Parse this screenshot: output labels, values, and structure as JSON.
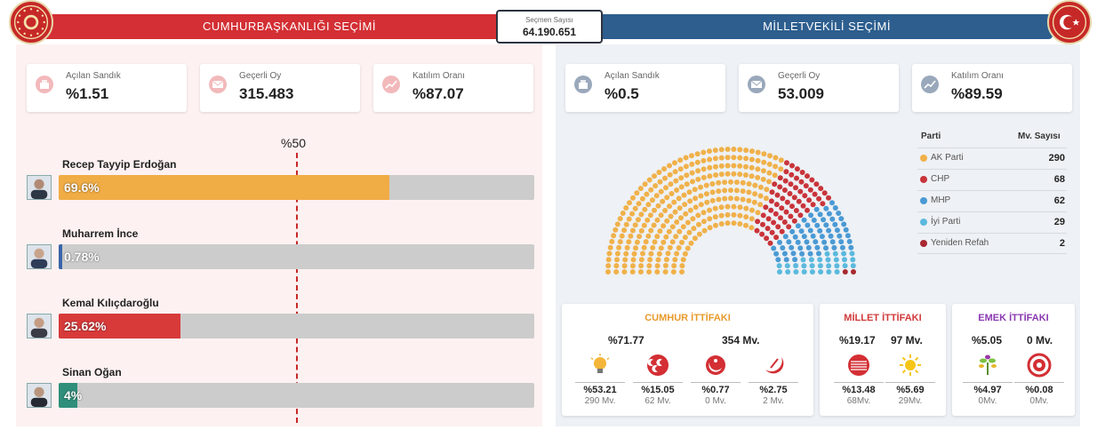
{
  "header": {
    "left_title": "CUMHURBAŞKANLIĞI SEÇİMİ",
    "right_title": "MİLLETVEKİLİ SEÇİMİ",
    "voters_label": "Seçmen Sayısı",
    "voters_value": "64.190.651"
  },
  "presidential": {
    "stats": [
      {
        "label": "Açılan Sandık",
        "value": "%1.51",
        "icon": "ballot-box-icon"
      },
      {
        "label": "Geçerli Oy",
        "value": "315.483",
        "icon": "envelope-icon"
      },
      {
        "label": "Katılım Oranı",
        "value": "%87.07",
        "icon": "trend-chart-icon"
      }
    ],
    "threshold_label": "%50",
    "candidates": [
      {
        "name": "Recep Tayyip Erdoğan",
        "pct_label": "69.6%",
        "pct": 69.6,
        "color": "#f0ac45"
      },
      {
        "name": "Muharrem İnce",
        "pct_label": "0.78%",
        "pct": 0.78,
        "color": "#3a64a8"
      },
      {
        "name": "Kemal Kılıçdaroğlu",
        "pct_label": "25.62%",
        "pct": 25.62,
        "color": "#d83a3a"
      },
      {
        "name": "Sinan Oğan",
        "pct_label": "4%",
        "pct": 4,
        "color": "#2f8f7a"
      }
    ]
  },
  "parliament": {
    "stats": [
      {
        "label": "Açılan Sandık",
        "value": "%0.5",
        "icon": "ballot-box-icon"
      },
      {
        "label": "Geçerli Oy",
        "value": "53.009",
        "icon": "envelope-icon"
      },
      {
        "label": "Katılım Oranı",
        "value": "%89.59",
        "icon": "trend-chart-icon"
      }
    ],
    "table_header_party": "Parti",
    "table_header_count": "Mv. Sayısı",
    "parties": [
      {
        "name": "AK Parti",
        "seats": "290",
        "seat_count": 290,
        "color": "#f0b14a"
      },
      {
        "name": "CHP",
        "seats": "68",
        "seat_count": 68,
        "color": "#c9343a"
      },
      {
        "name": "MHP",
        "seats": "62",
        "seat_count": 62,
        "color": "#4a9ad4"
      },
      {
        "name": "İyi Parti",
        "seats": "29",
        "seat_count": 29,
        "color": "#5bb9de"
      },
      {
        "name": "Yeniden Refah",
        "seats": "2",
        "seat_count": 2,
        "color": "#a82830"
      }
    ]
  },
  "alliances": [
    {
      "title": "CUMHUR İTTİFAKI",
      "title_color": "#e89a2c",
      "pct": "%71.77",
      "mv": "354 Mv.",
      "parties": [
        {
          "icon": "ak-parti-bulb-icon",
          "pct": "%53.21",
          "mv": "290 Mv."
        },
        {
          "icon": "mhp-crescents-icon",
          "pct": "%15.05",
          "mv": "62 Mv."
        },
        {
          "icon": "bbp-crescent-icon",
          "pct": "%0.77",
          "mv": "0 Mv."
        },
        {
          "icon": "yeniden-refah-icon",
          "pct": "%2.75",
          "mv": "2 Mv."
        }
      ]
    },
    {
      "title": "MİLLET İTTİFAKI",
      "title_color": "#d23a3a",
      "pct": "%19.17",
      "mv": "97 Mv.",
      "parties": [
        {
          "icon": "chp-arrows-icon",
          "pct": "%13.48",
          "mv": "68Mv."
        },
        {
          "icon": "iyi-parti-sun-icon",
          "pct": "%5.69",
          "mv": "29Mv."
        }
      ]
    },
    {
      "title": "EMEK İTTİFAKI",
      "title_color": "#8a3ab0",
      "pct": "%5.05",
      "mv": "0 Mv.",
      "parties": [
        {
          "icon": "yesil-sol-icon",
          "pct": "%4.97",
          "mv": "0Mv."
        },
        {
          "icon": "tip-logo-icon",
          "pct": "%0.08",
          "mv": "0Mv."
        }
      ]
    }
  ]
}
